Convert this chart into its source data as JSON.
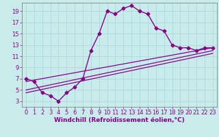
{
  "xlabel": "Windchill (Refroidissement éolien,°C)",
  "background_color": "#c8ecec",
  "grid_color": "#b0d8d8",
  "line_color": "#880088",
  "xlim": [
    -0.5,
    23.5
  ],
  "ylim": [
    2.0,
    20.5
  ],
  "yticks": [
    3,
    5,
    7,
    9,
    11,
    13,
    15,
    17,
    19
  ],
  "xticks": [
    0,
    1,
    2,
    3,
    4,
    5,
    6,
    7,
    8,
    9,
    10,
    11,
    12,
    13,
    14,
    15,
    16,
    17,
    18,
    19,
    20,
    21,
    22,
    23
  ],
  "main_x": [
    0,
    1,
    2,
    3,
    4,
    5,
    6,
    7,
    8,
    9,
    10,
    11,
    12,
    13,
    14,
    15,
    16,
    17,
    18,
    19,
    20,
    21,
    22,
    23
  ],
  "main_y": [
    7.0,
    6.5,
    4.5,
    4.0,
    3.0,
    4.5,
    5.5,
    7.0,
    12.0,
    15.0,
    19.0,
    18.5,
    19.5,
    20.0,
    19.0,
    18.5,
    16.0,
    15.5,
    13.0,
    12.5,
    12.5,
    12.0,
    12.5,
    12.5
  ],
  "line2_x": [
    0,
    23
  ],
  "line2_y": [
    6.5,
    12.5
  ],
  "line3_x": [
    0,
    23
  ],
  "line3_y": [
    5.0,
    12.0
  ],
  "line4_x": [
    0,
    23
  ],
  "line4_y": [
    4.5,
    11.5
  ],
  "marker_size": 2.5,
  "font_size": 6,
  "xlabel_fontsize": 6.5
}
